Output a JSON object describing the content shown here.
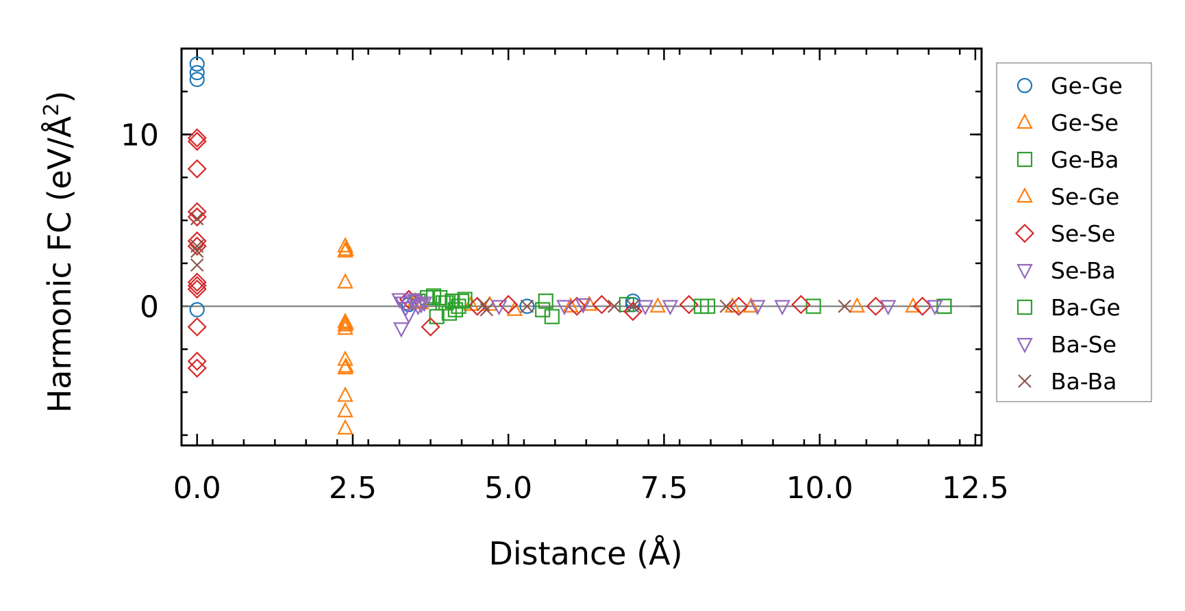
{
  "chart_data": {
    "type": "scatter",
    "title": "",
    "xlabel": "Distance (Å)",
    "ylabel_prefix": "Harmonic FC (eV/Å",
    "ylabel_sup": "2",
    "ylabel_suffix": ")",
    "xlim": [
      -0.25,
      12.6
    ],
    "ylim": [
      -8.1,
      15.0
    ],
    "x_major_ticks": [
      0.0,
      2.5,
      5.0,
      7.5,
      10.0,
      12.5
    ],
    "x_tick_labels": [
      "0.0",
      "2.5",
      "5.0",
      "7.5",
      "10.0",
      "12.5"
    ],
    "y_major_ticks": [
      0,
      10
    ],
    "y_tick_labels": [
      "0",
      "10"
    ],
    "zero_line": true,
    "legend_position": "outside-right",
    "series": [
      {
        "name": "Ge-Ge",
        "marker": "circle",
        "color": "#1f77b4",
        "points": [
          [
            0.0,
            14.1
          ],
          [
            0.0,
            13.6
          ],
          [
            0.0,
            13.2
          ],
          [
            0.0,
            -0.2
          ],
          [
            7.0,
            0.3
          ],
          [
            7.0,
            0.1
          ],
          [
            3.4,
            0.1
          ],
          [
            5.3,
            0.0
          ]
        ]
      },
      {
        "name": "Ge-Se",
        "marker": "triangle-up",
        "color": "#ff7f0e",
        "points": [
          [
            2.38,
            3.5
          ],
          [
            2.38,
            3.2
          ],
          [
            2.38,
            1.4
          ],
          [
            2.38,
            -0.9
          ],
          [
            2.38,
            -1.1
          ],
          [
            2.38,
            -1.3
          ],
          [
            2.38,
            -3.1
          ],
          [
            2.38,
            -3.6
          ],
          [
            2.38,
            -5.2
          ],
          [
            2.38,
            -6.1
          ],
          [
            2.38,
            -7.1
          ],
          [
            3.5,
            0.3
          ],
          [
            4.4,
            0.1
          ],
          [
            5.1,
            -0.2
          ],
          [
            6.3,
            0.1
          ],
          [
            7.4,
            0.0
          ],
          [
            8.6,
            0.0
          ],
          [
            10.6,
            0.0
          ]
        ]
      },
      {
        "name": "Ge-Ba",
        "marker": "square",
        "color": "#2ca02c",
        "points": [
          [
            3.55,
            0.3
          ],
          [
            3.7,
            0.5
          ],
          [
            3.8,
            0.6
          ],
          [
            3.9,
            0.5
          ],
          [
            4.0,
            0.2
          ],
          [
            4.1,
            0.3
          ],
          [
            4.2,
            0.0
          ],
          [
            4.3,
            0.4
          ],
          [
            3.85,
            -0.6
          ],
          [
            4.05,
            -0.4
          ],
          [
            5.6,
            0.3
          ],
          [
            5.7,
            -0.6
          ],
          [
            6.9,
            0.1
          ],
          [
            8.2,
            0.0
          ],
          [
            9.9,
            0.0
          ],
          [
            12.0,
            0.0
          ]
        ]
      },
      {
        "name": "Se-Ge",
        "marker": "triangle-up",
        "color": "#ff7f0e",
        "points": [
          [
            2.39,
            3.3
          ],
          [
            2.39,
            -1.0
          ],
          [
            2.39,
            -3.5
          ],
          [
            3.6,
            0.2
          ],
          [
            4.7,
            0.1
          ],
          [
            6.0,
            0.0
          ],
          [
            8.9,
            0.0
          ],
          [
            11.5,
            0.0
          ]
        ]
      },
      {
        "name": "Se-Se",
        "marker": "diamond",
        "color": "#d62728",
        "points": [
          [
            0.0,
            9.8
          ],
          [
            0.0,
            9.6
          ],
          [
            0.0,
            8.0
          ],
          [
            0.0,
            5.5
          ],
          [
            0.0,
            5.2
          ],
          [
            0.0,
            3.8
          ],
          [
            0.0,
            3.5
          ],
          [
            0.0,
            1.4
          ],
          [
            0.0,
            1.2
          ],
          [
            0.0,
            1.0
          ],
          [
            0.0,
            -1.2
          ],
          [
            0.0,
            -3.2
          ],
          [
            0.0,
            -3.6
          ],
          [
            3.4,
            0.4
          ],
          [
            3.75,
            -1.2
          ],
          [
            4.5,
            0.0
          ],
          [
            5.0,
            0.1
          ],
          [
            6.1,
            0.0
          ],
          [
            6.5,
            0.1
          ],
          [
            7.0,
            -0.3
          ],
          [
            7.9,
            0.1
          ],
          [
            8.7,
            0.0
          ],
          [
            9.7,
            0.1
          ],
          [
            10.9,
            0.0
          ],
          [
            11.65,
            0.0
          ]
        ]
      },
      {
        "name": "Se-Ba",
        "marker": "triangle-down",
        "color": "#9467bd",
        "points": [
          [
            3.25,
            0.4
          ],
          [
            3.3,
            0.2
          ],
          [
            3.35,
            -0.1
          ],
          [
            3.4,
            -0.5
          ],
          [
            3.28,
            -1.3
          ],
          [
            3.5,
            0.3
          ],
          [
            3.6,
            0.1
          ],
          [
            5.9,
            0.0
          ],
          [
            7.2,
            0.0
          ],
          [
            9.0,
            0.0
          ],
          [
            11.1,
            0.0
          ]
        ]
      },
      {
        "name": "Ba-Ge",
        "marker": "square",
        "color": "#2ca02c",
        "points": [
          [
            3.95,
            0.2
          ],
          [
            4.15,
            -0.2
          ],
          [
            4.25,
            0.3
          ],
          [
            5.55,
            -0.2
          ],
          [
            8.1,
            0.0
          ],
          [
            12.0,
            0.0
          ]
        ]
      },
      {
        "name": "Ba-Se",
        "marker": "triangle-down",
        "color": "#9467bd",
        "points": [
          [
            3.3,
            0.2
          ],
          [
            3.45,
            0.4
          ],
          [
            3.55,
            0.0
          ],
          [
            3.65,
            0.2
          ],
          [
            4.85,
            0.0
          ],
          [
            6.2,
            0.1
          ],
          [
            7.6,
            0.0
          ],
          [
            9.4,
            0.0
          ],
          [
            11.85,
            0.0
          ]
        ]
      },
      {
        "name": "Ba-Ba",
        "marker": "x",
        "color": "#8c564b",
        "points": [
          [
            0.0,
            5.1
          ],
          [
            0.0,
            3.5
          ],
          [
            0.0,
            3.2
          ],
          [
            0.0,
            2.4
          ],
          [
            4.6,
            0.1
          ],
          [
            4.65,
            -0.2
          ],
          [
            5.3,
            0.0
          ],
          [
            6.7,
            0.0
          ],
          [
            7.0,
            0.0
          ],
          [
            8.5,
            0.0
          ],
          [
            10.4,
            0.0
          ]
        ]
      }
    ]
  }
}
